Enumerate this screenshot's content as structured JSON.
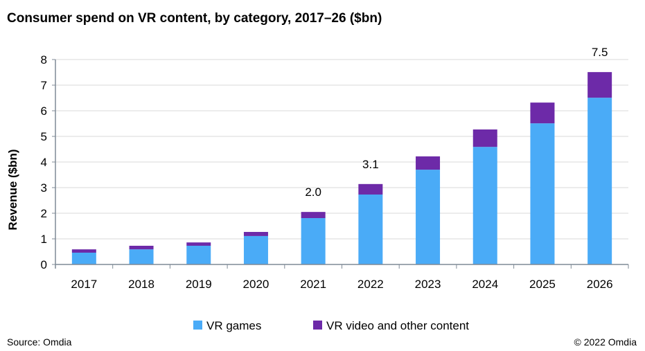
{
  "chart_data": {
    "type": "bar",
    "stacked": true,
    "title": "Consumer spend on VR content, by category, 2017–26 ($bn)",
    "xlabel": "",
    "ylabel": "Revenue ($bn)",
    "ylim": [
      0,
      8
    ],
    "yticks": [
      0,
      1,
      2,
      3,
      4,
      5,
      6,
      7,
      8
    ],
    "grid": true,
    "legend_position": "bottom",
    "categories": [
      "2017",
      "2018",
      "2019",
      "2020",
      "2021",
      "2022",
      "2023",
      "2024",
      "2025",
      "2026"
    ],
    "series": [
      {
        "name": "VR games",
        "color": "#4aabf7",
        "values": [
          0.46,
          0.59,
          0.73,
          1.11,
          1.81,
          2.73,
          3.7,
          4.59,
          5.51,
          6.51
        ]
      },
      {
        "name": "VR video and other content",
        "color": "#6d2aa8",
        "values": [
          0.13,
          0.14,
          0.13,
          0.16,
          0.24,
          0.41,
          0.52,
          0.68,
          0.81,
          1.0
        ]
      }
    ],
    "annotations": [
      {
        "category": "2021",
        "text": "2.0"
      },
      {
        "category": "2022",
        "text": "3.1"
      },
      {
        "category": "2026",
        "text": "7.5"
      }
    ]
  },
  "footer": {
    "source": "Source: Omdia",
    "copyright": "© 2022 Omdia"
  }
}
